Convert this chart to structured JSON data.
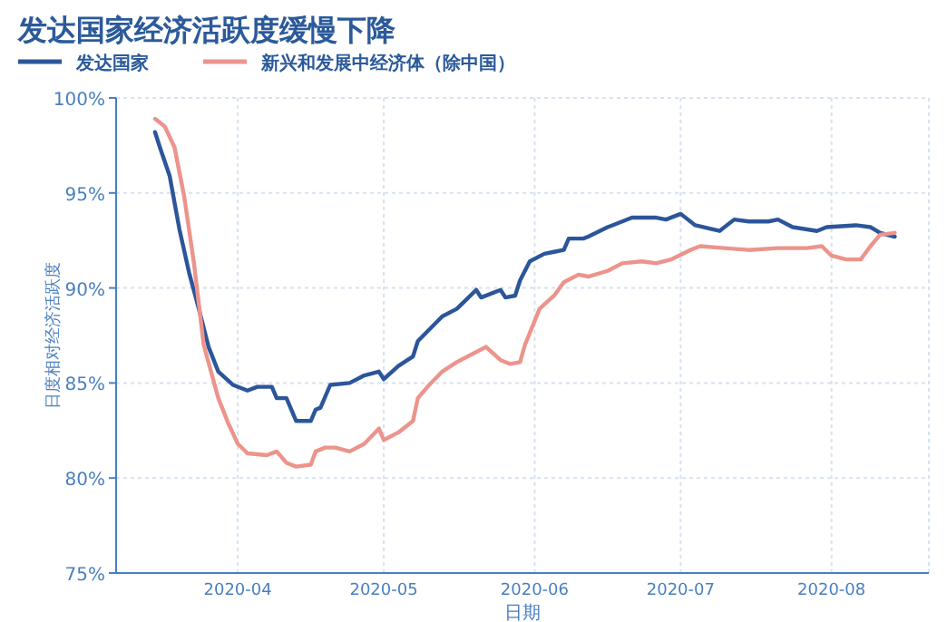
{
  "chart_data": {
    "type": "line",
    "title": "发达国家经济活跃度缓慢下降",
    "xlabel": "日期",
    "ylabel": "日度相对经济活跃度",
    "xlim": [
      "2020-03-07",
      "2020-08-21"
    ],
    "ylim": [
      75,
      100
    ],
    "xticks": [
      {
        "value": "2020-04-01",
        "label": "2020-04"
      },
      {
        "value": "2020-05-01",
        "label": "2020-05"
      },
      {
        "value": "2020-06-01",
        "label": "2020-06"
      },
      {
        "value": "2020-07-01",
        "label": "2020-07"
      },
      {
        "value": "2020-08-01",
        "label": "2020-08"
      }
    ],
    "yticks": [
      {
        "value": 75,
        "label": "75%"
      },
      {
        "value": 80,
        "label": "80%"
      },
      {
        "value": 85,
        "label": "85%"
      },
      {
        "value": 90,
        "label": "90%"
      },
      {
        "value": 95,
        "label": "95%"
      },
      {
        "value": 100,
        "label": "100%"
      }
    ],
    "grid": true,
    "legend": "top left",
    "series": [
      {
        "name": "发达国家",
        "color": "#2c559a",
        "x": [
          "2020-03-15",
          "2020-03-16",
          "2020-03-18",
          "2020-03-20",
          "2020-03-22",
          "2020-03-24",
          "2020-03-26",
          "2020-03-28",
          "2020-03-31",
          "2020-04-03",
          "2020-04-05",
          "2020-04-08",
          "2020-04-09",
          "2020-04-11",
          "2020-04-13",
          "2020-04-16",
          "2020-04-17",
          "2020-04-18",
          "2020-04-20",
          "2020-04-24",
          "2020-04-27",
          "2020-04-30",
          "2020-05-01",
          "2020-05-04",
          "2020-05-07",
          "2020-05-08",
          "2020-05-13",
          "2020-05-16",
          "2020-05-20",
          "2020-05-21",
          "2020-05-25",
          "2020-05-26",
          "2020-05-28",
          "2020-05-29",
          "2020-05-31",
          "2020-06-03",
          "2020-06-05",
          "2020-06-07",
          "2020-06-08",
          "2020-06-11",
          "2020-06-12",
          "2020-06-16",
          "2020-06-17",
          "2020-06-21",
          "2020-06-26",
          "2020-06-28",
          "2020-07-01",
          "2020-07-04",
          "2020-07-09",
          "2020-07-12",
          "2020-07-15",
          "2020-07-19",
          "2020-07-21",
          "2020-07-24",
          "2020-07-29",
          "2020-07-31",
          "2020-08-06",
          "2020-08-09",
          "2020-08-11",
          "2020-08-14"
        ],
        "values": [
          98.2,
          97.4,
          95.9,
          93.1,
          90.8,
          88.9,
          86.9,
          85.6,
          84.9,
          84.6,
          84.8,
          84.8,
          84.2,
          84.2,
          83.0,
          83.0,
          83.6,
          83.7,
          84.9,
          85.0,
          85.4,
          85.6,
          85.2,
          85.9,
          86.4,
          87.2,
          88.5,
          88.9,
          89.9,
          89.5,
          89.9,
          89.5,
          89.6,
          90.4,
          91.4,
          91.8,
          91.9,
          92.0,
          92.6,
          92.6,
          92.7,
          93.2,
          93.3,
          93.7,
          93.7,
          93.6,
          93.9,
          93.3,
          93.0,
          93.6,
          93.5,
          93.5,
          93.6,
          93.2,
          93.0,
          93.2,
          93.3,
          93.2,
          92.9,
          92.7
        ]
      },
      {
        "name": "新兴和发展中经济体（除中国）",
        "color": "#ec948c",
        "x": [
          "2020-03-15",
          "2020-03-17",
          "2020-03-19",
          "2020-03-21",
          "2020-03-23",
          "2020-03-25",
          "2020-03-28",
          "2020-03-30",
          "2020-04-01",
          "2020-04-03",
          "2020-04-07",
          "2020-04-09",
          "2020-04-11",
          "2020-04-13",
          "2020-04-16",
          "2020-04-17",
          "2020-04-19",
          "2020-04-21",
          "2020-04-24",
          "2020-04-27",
          "2020-04-30",
          "2020-05-01",
          "2020-05-04",
          "2020-05-07",
          "2020-05-08",
          "2020-05-10",
          "2020-05-13",
          "2020-05-16",
          "2020-05-19",
          "2020-05-22",
          "2020-05-25",
          "2020-05-27",
          "2020-05-29",
          "2020-05-30",
          "2020-06-02",
          "2020-06-05",
          "2020-06-07",
          "2020-06-10",
          "2020-06-12",
          "2020-06-16",
          "2020-06-19",
          "2020-06-23",
          "2020-06-26",
          "2020-06-29",
          "2020-07-03",
          "2020-07-05",
          "2020-07-10",
          "2020-07-15",
          "2020-07-21",
          "2020-07-27",
          "2020-07-30",
          "2020-08-01",
          "2020-08-04",
          "2020-08-07",
          "2020-08-09",
          "2020-08-11",
          "2020-08-14"
        ],
        "values": [
          98.9,
          98.5,
          97.4,
          94.8,
          91.3,
          87.0,
          84.2,
          82.9,
          81.8,
          81.3,
          81.2,
          81.4,
          80.8,
          80.6,
          80.7,
          81.4,
          81.6,
          81.6,
          81.4,
          81.8,
          82.6,
          82.0,
          82.4,
          83.0,
          84.2,
          84.8,
          85.6,
          86.1,
          86.5,
          86.9,
          86.2,
          86.0,
          86.1,
          87.0,
          88.9,
          89.6,
          90.3,
          90.7,
          90.6,
          90.9,
          91.3,
          91.4,
          91.3,
          91.5,
          92.0,
          92.2,
          92.1,
          92.0,
          92.1,
          92.1,
          92.2,
          91.7,
          91.5,
          91.5,
          92.2,
          92.8,
          92.9
        ]
      }
    ]
  }
}
